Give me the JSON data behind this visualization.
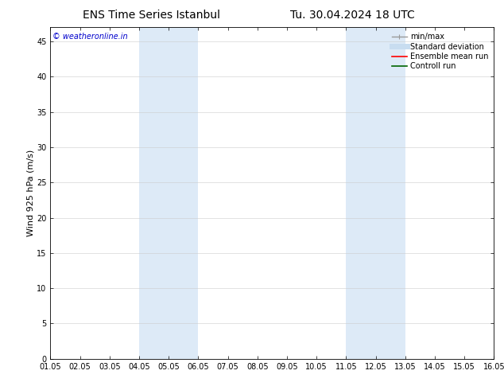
{
  "title_left": "ENS Time Series Istanbul",
  "title_right": "Tu. 30.04.2024 18 UTC",
  "ylabel": "Wind 925 hPa (m/s)",
  "xlabel": "",
  "ylim": [
    0,
    47
  ],
  "yticks": [
    0,
    5,
    10,
    15,
    20,
    25,
    30,
    35,
    40,
    45
  ],
  "xtick_labels": [
    "01.05",
    "02.05",
    "03.05",
    "04.05",
    "05.05",
    "06.05",
    "07.05",
    "08.05",
    "09.05",
    "10.05",
    "11.05",
    "12.05",
    "13.05",
    "14.05",
    "15.05",
    "16.05"
  ],
  "xtick_positions": [
    0,
    1,
    2,
    3,
    4,
    5,
    6,
    7,
    8,
    9,
    10,
    11,
    12,
    13,
    14,
    15
  ],
  "shaded_regions": [
    {
      "xmin": 3,
      "xmax": 5,
      "color": "#ddeaf7"
    },
    {
      "xmin": 10,
      "xmax": 12,
      "color": "#ddeaf7"
    }
  ],
  "background_color": "#ffffff",
  "plot_bg_color": "#ffffff",
  "grid_color": "#cccccc",
  "watermark_text": "© weatheronline.in",
  "watermark_color": "#0000cc",
  "legend_items": [
    {
      "label": "min/max",
      "color": "#999999",
      "lw": 1.0
    },
    {
      "label": "Standard deviation",
      "color": "#c8ddf0",
      "lw": 5
    },
    {
      "label": "Ensemble mean run",
      "color": "#ff0000",
      "lw": 1.2
    },
    {
      "label": "Controll run",
      "color": "#006400",
      "lw": 1.2
    }
  ],
  "title_fontsize": 10,
  "tick_fontsize": 7,
  "ylabel_fontsize": 8,
  "legend_fontsize": 7,
  "watermark_fontsize": 7
}
